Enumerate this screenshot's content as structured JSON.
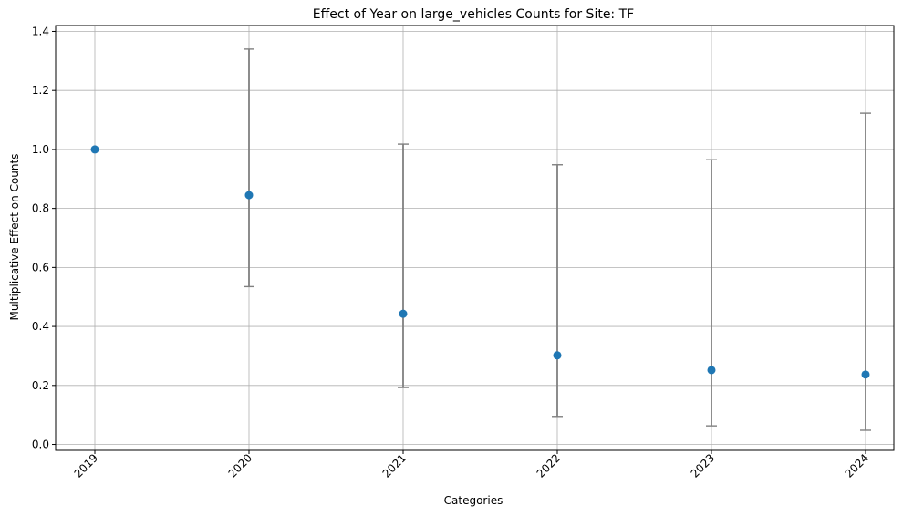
{
  "chart_data": {
    "type": "scatter",
    "title": "Effect of Year on large_vehicles Counts for Site: TF",
    "xlabel": "Categories",
    "ylabel": "Multiplicative Effect on Counts",
    "categories": [
      "2019",
      "2020",
      "2021",
      "2022",
      "2023",
      "2024"
    ],
    "values": [
      1.0,
      0.845,
      0.443,
      0.302,
      0.252,
      0.237
    ],
    "lower": [
      1.0,
      0.535,
      0.193,
      0.095,
      0.063,
      0.048
    ],
    "upper": [
      1.0,
      1.34,
      1.018,
      0.948,
      0.965,
      1.123
    ],
    "ylim": [
      -0.02,
      1.42
    ],
    "yticks": [
      "0.0",
      "0.2",
      "0.4",
      "0.6",
      "0.8",
      "1.0",
      "1.2",
      "1.4"
    ],
    "grid": true,
    "legend": "none",
    "colors": {
      "point": "#1f77b4",
      "errorbar": "#808080",
      "grid": "#b0b0b0"
    }
  }
}
